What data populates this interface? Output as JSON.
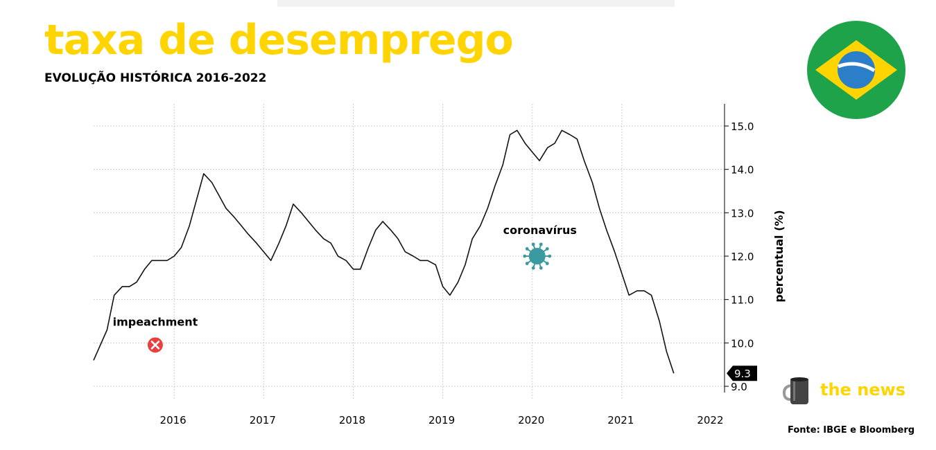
{
  "header": {
    "title": "taxa de desemprego",
    "subtitle": "EVOLUÇÃO HISTÓRICA 2016-2022"
  },
  "brand": {
    "name": "the news",
    "icon": "coffee-mug-icon"
  },
  "source": "Fonte: IBGE e Bloomberg",
  "flag": {
    "country": "Brazil",
    "icon": "brazil-flag-icon",
    "colors": {
      "green": "#1ea34a",
      "yellow": "#ffd400",
      "blue": "#2b7fc8"
    }
  },
  "colors": {
    "title": "#ffd400",
    "line": "#111111",
    "grid": "#cccccc",
    "virus": "#3a9aa0",
    "cross": "#e84040"
  },
  "chart_data": {
    "type": "line",
    "title": "",
    "xlabel": "",
    "ylabel": "percentual (%)",
    "ylim": [
      9.0,
      15.0
    ],
    "yticks": [
      9.0,
      10.0,
      11.0,
      12.0,
      13.0,
      14.0,
      15.0
    ],
    "ytick_labels": [
      "9.0",
      "10.0",
      "11.0",
      "12.0",
      "13.0",
      "14.0",
      "15.0"
    ],
    "xlim": [
      2015.6,
      2022.5
    ],
    "xticks": [
      "2016",
      "2017",
      "2018",
      "2019",
      "2020",
      "2021",
      "2022"
    ],
    "grid": true,
    "y_axis_side": "right",
    "last_value_label": "9.3",
    "series": [
      {
        "values": [
          [
            2015.6,
            9.6
          ],
          [
            2015.75,
            10.3
          ],
          [
            2015.83,
            11.1
          ],
          [
            2015.92,
            11.3
          ],
          [
            2016.0,
            11.3
          ],
          [
            2016.08,
            11.4
          ],
          [
            2016.17,
            11.7
          ],
          [
            2016.25,
            11.9
          ],
          [
            2016.33,
            11.9
          ],
          [
            2016.42,
            11.9
          ],
          [
            2016.5,
            12.0
          ],
          [
            2016.58,
            12.2
          ],
          [
            2016.67,
            12.7
          ],
          [
            2016.75,
            13.3
          ],
          [
            2016.83,
            13.9
          ],
          [
            2016.92,
            13.7
          ],
          [
            2017.0,
            13.4
          ],
          [
            2017.08,
            13.1
          ],
          [
            2017.17,
            12.9
          ],
          [
            2017.25,
            12.7
          ],
          [
            2017.33,
            12.5
          ],
          [
            2017.42,
            12.3
          ],
          [
            2017.5,
            12.1
          ],
          [
            2017.58,
            11.9
          ],
          [
            2017.67,
            12.3
          ],
          [
            2017.75,
            12.7
          ],
          [
            2017.83,
            13.2
          ],
          [
            2017.92,
            13.0
          ],
          [
            2018.0,
            12.8
          ],
          [
            2018.08,
            12.6
          ],
          [
            2018.17,
            12.4
          ],
          [
            2018.25,
            12.3
          ],
          [
            2018.33,
            12.0
          ],
          [
            2018.42,
            11.9
          ],
          [
            2018.5,
            11.7
          ],
          [
            2018.58,
            11.7
          ],
          [
            2018.67,
            12.2
          ],
          [
            2018.75,
            12.6
          ],
          [
            2018.83,
            12.8
          ],
          [
            2018.92,
            12.6
          ],
          [
            2019.0,
            12.4
          ],
          [
            2019.08,
            12.1
          ],
          [
            2019.17,
            12.0
          ],
          [
            2019.25,
            11.9
          ],
          [
            2019.33,
            11.9
          ],
          [
            2019.42,
            11.8
          ],
          [
            2019.5,
            11.3
          ],
          [
            2019.58,
            11.1
          ],
          [
            2019.67,
            11.4
          ],
          [
            2019.75,
            11.8
          ],
          [
            2019.83,
            12.4
          ],
          [
            2019.92,
            12.7
          ],
          [
            2020.0,
            13.1
          ],
          [
            2020.08,
            13.6
          ],
          [
            2020.17,
            14.1
          ],
          [
            2020.25,
            14.8
          ],
          [
            2020.33,
            14.9
          ],
          [
            2020.42,
            14.6
          ],
          [
            2020.5,
            14.4
          ],
          [
            2020.58,
            14.2
          ],
          [
            2020.67,
            14.5
          ],
          [
            2020.75,
            14.6
          ],
          [
            2020.83,
            14.9
          ],
          [
            2020.92,
            14.8
          ],
          [
            2021.0,
            14.7
          ],
          [
            2021.08,
            14.2
          ],
          [
            2021.17,
            13.7
          ],
          [
            2021.25,
            13.1
          ],
          [
            2021.33,
            12.6
          ],
          [
            2021.42,
            12.1
          ],
          [
            2021.5,
            11.6
          ],
          [
            2021.58,
            11.1
          ],
          [
            2021.67,
            11.2
          ],
          [
            2021.75,
            11.2
          ],
          [
            2021.83,
            11.1
          ],
          [
            2021.92,
            10.5
          ],
          [
            2022.0,
            9.8
          ],
          [
            2022.08,
            9.3
          ]
        ]
      }
    ],
    "annotations": [
      {
        "text": "impeachment",
        "x": 2016.25,
        "y": 10.0,
        "icon": "red-cross-icon"
      },
      {
        "text": "coronavírus",
        "x": 2020.5,
        "y": 12.0,
        "icon": "coronavirus-icon"
      }
    ]
  }
}
